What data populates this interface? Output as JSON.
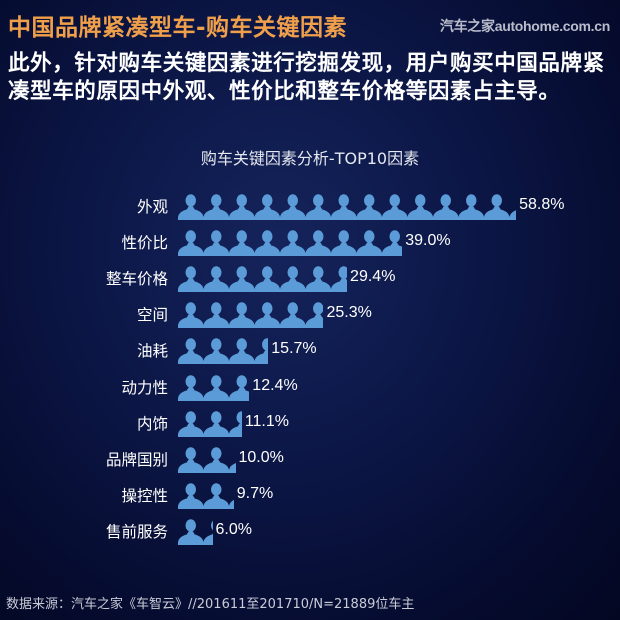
{
  "header": {
    "title": "中国品牌紧凑型车-购车关键因素",
    "brand": "汽车之家autohome.com.cn"
  },
  "summary": "此外，针对购车关键因素进行挖掘发现，用户购买中国品牌紧凑型车的原因中外观、性价比和整车价格等因素占主导。",
  "footer": "数据来源：汽车之家《车智云》//201611至201710/N=21889位车主",
  "colors": {
    "background": "#0c1747",
    "title": "#f0a04b",
    "bar": "#5b9bd8",
    "text": "#ffffff"
  },
  "chart_data": {
    "type": "bar",
    "orientation": "horizontal",
    "style": "pictograph-person-icons",
    "title": "购车关键因素分析-TOP10因素",
    "xlabel": "",
    "ylabel": "",
    "unit": "%",
    "categories": [
      "外观",
      "性价比",
      "整车价格",
      "空间",
      "油耗",
      "动力性",
      "内饰",
      "品牌国别",
      "操控性",
      "售前服务"
    ],
    "values": [
      58.8,
      39.0,
      29.4,
      25.3,
      15.7,
      12.4,
      11.1,
      10.0,
      9.7,
      6.0
    ],
    "labels": [
      "58.8%",
      "39.0%",
      "29.4%",
      "25.3%",
      "15.7%",
      "12.4%",
      "11.1%",
      "10.0%",
      "9.7%",
      "6.0%"
    ],
    "grid": false,
    "legend": null,
    "bar_color": "#5b9bd8"
  }
}
